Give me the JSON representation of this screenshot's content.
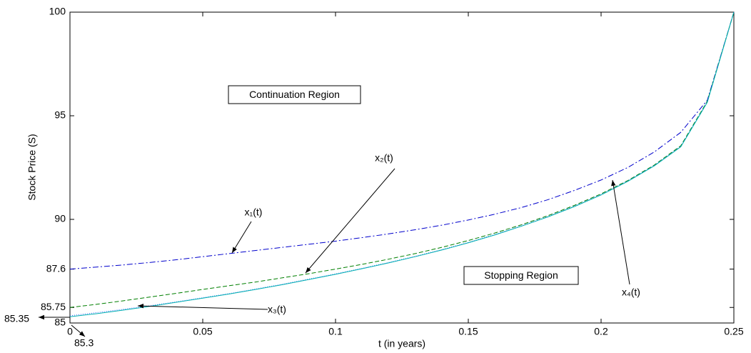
{
  "chart_data": {
    "type": "line",
    "xlabel": "t (in years)",
    "ylabel": "Stock Price (S)",
    "x": [
      0,
      0.01,
      0.02,
      0.03,
      0.04,
      0.05,
      0.06,
      0.07,
      0.08,
      0.09,
      0.1,
      0.11,
      0.12,
      0.13,
      0.14,
      0.15,
      0.16,
      0.17,
      0.18,
      0.19,
      0.2,
      0.21,
      0.22,
      0.23,
      0.24,
      0.25
    ],
    "series": [
      {
        "name": "x₁(t)",
        "color": "#0000cc",
        "dash": "8 3 2 3",
        "values": [
          87.6,
          87.7,
          87.8,
          87.92,
          88.05,
          88.2,
          88.35,
          88.5,
          88.65,
          88.8,
          88.95,
          89.12,
          89.3,
          89.5,
          89.72,
          89.97,
          90.25,
          90.57,
          90.95,
          91.4,
          91.9,
          92.5,
          93.25,
          94.2,
          95.75,
          100
        ]
      },
      {
        "name": "x₂(t)",
        "color": "#007f00",
        "dash": "6 3",
        "values": [
          85.75,
          85.9,
          86.07,
          86.25,
          86.43,
          86.62,
          86.8,
          86.98,
          87.18,
          87.38,
          87.6,
          87.83,
          88.08,
          88.35,
          88.65,
          88.98,
          89.34,
          89.74,
          90.18,
          90.68,
          91.23,
          91.87,
          92.62,
          93.55,
          95.7,
          100
        ]
      },
      {
        "name": "x₃(t)",
        "color": "#3366ff",
        "dash": "1 2",
        "values": [
          85.35,
          85.5,
          85.66,
          85.83,
          86.02,
          86.22,
          86.42,
          86.64,
          86.87,
          87.12,
          87.37,
          87.64,
          87.92,
          88.22,
          88.54,
          88.89,
          89.27,
          89.69,
          90.14,
          90.64,
          91.2,
          91.85,
          92.6,
          93.52,
          95.67,
          100
        ]
      },
      {
        "name": "x₄(t)",
        "color": "#00b0b0",
        "dash": "",
        "values": [
          85.3,
          85.45,
          85.62,
          85.8,
          86.0,
          86.2,
          86.4,
          86.62,
          86.85,
          87.1,
          87.35,
          87.62,
          87.9,
          88.2,
          88.52,
          88.87,
          89.25,
          89.67,
          90.12,
          90.62,
          91.18,
          91.83,
          92.58,
          93.5,
          95.65,
          100
        ]
      }
    ],
    "xlim": [
      0,
      0.25
    ],
    "xticks": [
      0,
      0.05,
      0.1,
      0.15,
      0.2,
      0.25
    ],
    "ylim": [
      85,
      100
    ],
    "yticks": [
      85,
      85.75,
      87.6,
      90,
      95,
      100
    ],
    "annotations": [
      "Continuation Region",
      "Stopping Region",
      "85.35",
      "85.3"
    ]
  }
}
